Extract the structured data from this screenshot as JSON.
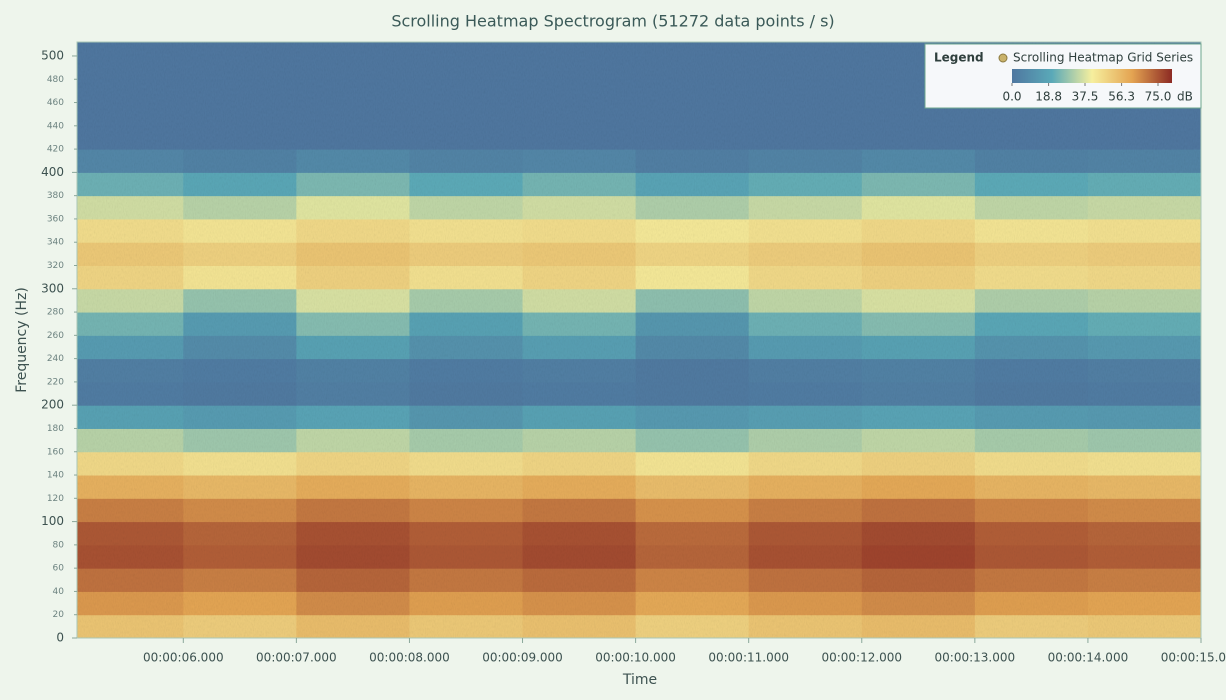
{
  "chart_data": {
    "type": "heatmap",
    "title": "Scrolling Heatmap Spectrogram (51272 data points / s)",
    "x_label": "Time",
    "y_label": "Frequency (Hz)",
    "x_bins": [
      5.06,
      6,
      7,
      8,
      9,
      10,
      11,
      12,
      13,
      14,
      15
    ],
    "y_bins": [
      0,
      20,
      40,
      60,
      80,
      100,
      120,
      140,
      160,
      180,
      200,
      220,
      240,
      260,
      280,
      300,
      320,
      340,
      360,
      380,
      400,
      420,
      440,
      460,
      480,
      500,
      512
    ],
    "values": [
      [
        48,
        46,
        50,
        47,
        49,
        45,
        48,
        50,
        46,
        47
      ],
      [
        58,
        56,
        60,
        57,
        59,
        55,
        58,
        60,
        57,
        56
      ],
      [
        64,
        62,
        66,
        63,
        65,
        61,
        64,
        66,
        63,
        62
      ],
      [
        69,
        67,
        70,
        68,
        70,
        66,
        69,
        71,
        68,
        67
      ],
      [
        68,
        66,
        69,
        67,
        69,
        65,
        68,
        70,
        67,
        66
      ],
      [
        62,
        60,
        63,
        61,
        63,
        59,
        62,
        64,
        61,
        60
      ],
      [
        53,
        51,
        54,
        52,
        54,
        50,
        53,
        55,
        52,
        51
      ],
      [
        43,
        41,
        44,
        42,
        44,
        40,
        43,
        45,
        42,
        41
      ],
      [
        30,
        27,
        31,
        28,
        30,
        26,
        29,
        31,
        28,
        27
      ],
      [
        16,
        14,
        17,
        12,
        16,
        13,
        15,
        17,
        14,
        13
      ],
      [
        2,
        1,
        3,
        1,
        2,
        1,
        2,
        3,
        1,
        2
      ],
      [
        3,
        2,
        4,
        2,
        3,
        1,
        3,
        4,
        2,
        3
      ],
      [
        14,
        8,
        16,
        10,
        15,
        7,
        14,
        16,
        11,
        13
      ],
      [
        22,
        14,
        24,
        16,
        22,
        12,
        21,
        24,
        18,
        20
      ],
      [
        32,
        26,
        34,
        28,
        33,
        25,
        31,
        34,
        29,
        30
      ],
      [
        44,
        40,
        45,
        41,
        44,
        39,
        43,
        45,
        42,
        43
      ],
      [
        47,
        45,
        48,
        46,
        47,
        44,
        46,
        48,
        45,
        46
      ],
      [
        42,
        40,
        43,
        41,
        42,
        39,
        41,
        43,
        40,
        41
      ],
      [
        33,
        30,
        35,
        31,
        33,
        29,
        32,
        35,
        31,
        32
      ],
      [
        21,
        18,
        23,
        19,
        22,
        17,
        20,
        23,
        19,
        20
      ],
      [
        6,
        4,
        7,
        5,
        6,
        3,
        5,
        7,
        4,
        5
      ],
      [
        0,
        0,
        0,
        0,
        0,
        0,
        0,
        0,
        0,
        0
      ],
      [
        0,
        0,
        0,
        0,
        0,
        0,
        0,
        0,
        0,
        0
      ],
      [
        0,
        0,
        0,
        0,
        0,
        0,
        0,
        0,
        0,
        0
      ],
      [
        0,
        0,
        0,
        0,
        0,
        0,
        0,
        0,
        0,
        0
      ],
      [
        0,
        0,
        0,
        0,
        0,
        0,
        0,
        0,
        0,
        0
      ]
    ],
    "xlim": [
      5.06,
      15
    ],
    "ylim": [
      0,
      512
    ],
    "xticks": [
      {
        "value": 6,
        "label": "00:00:06.000"
      },
      {
        "value": 7,
        "label": "00:00:07.000"
      },
      {
        "value": 8,
        "label": "00:00:08.000"
      },
      {
        "value": 9,
        "label": "00:00:09.000"
      },
      {
        "value": 10,
        "label": "00:00:10.000"
      },
      {
        "value": 11,
        "label": "00:00:11.000"
      },
      {
        "value": 12,
        "label": "00:00:12.000"
      },
      {
        "value": 13,
        "label": "00:00:13.000"
      },
      {
        "value": 14,
        "label": "00:00:14.000"
      },
      {
        "value": 15,
        "label": "00:00:15.000"
      }
    ],
    "yticks": [
      0,
      20,
      40,
      60,
      80,
      100,
      120,
      140,
      160,
      180,
      200,
      220,
      240,
      260,
      280,
      300,
      320,
      340,
      360,
      380,
      400,
      420,
      440,
      460,
      480,
      500
    ],
    "colorscale": [
      "#4f77a0",
      "#5aa9b8",
      "#f6ef9e",
      "#e4a452",
      "#8c2a23"
    ],
    "clim": [
      0,
      75
    ],
    "legend": {
      "title": "Legend",
      "series_name": "Scrolling Heatmap Grid Series",
      "unit": "dB",
      "ticks": [
        {
          "value": 0,
          "label": "0.0"
        },
        {
          "value": 18.8,
          "label": "18.8"
        },
        {
          "value": 37.5,
          "label": "37.5"
        },
        {
          "value": 56.3,
          "label": "56.3"
        },
        {
          "value": 75,
          "label": "75.0"
        }
      ],
      "position": "top-right"
    }
  }
}
